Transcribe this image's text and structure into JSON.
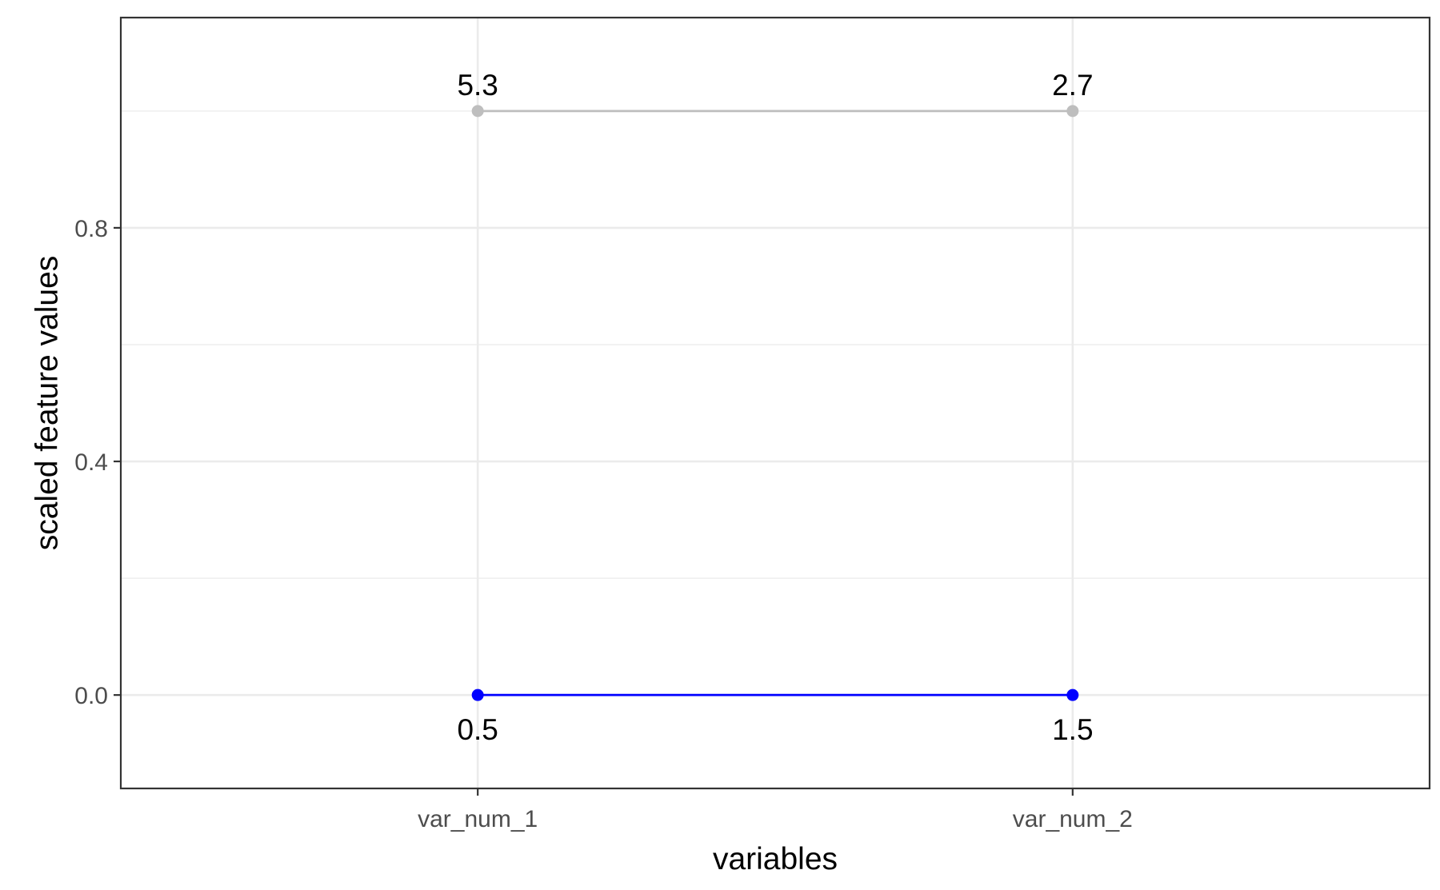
{
  "chart_data": {
    "type": "line",
    "title": "",
    "xlabel": "variables",
    "ylabel": "scaled feature values",
    "categories": [
      "var_num_1",
      "var_num_2"
    ],
    "ylim": [
      -0.16,
      1.16
    ],
    "y_ticks": [
      0.0,
      0.4,
      0.8
    ],
    "y_tick_labels": [
      "0.0",
      "0.4",
      "0.8"
    ],
    "grid": true,
    "series": [
      {
        "values": [
          1.0,
          1.0
        ],
        "labels": [
          "5.3",
          "2.7"
        ],
        "color": "#bebebe"
      },
      {
        "values": [
          0.0,
          0.0
        ],
        "labels": [
          "0.5",
          "1.5"
        ],
        "color": "#0000ff"
      }
    ]
  }
}
